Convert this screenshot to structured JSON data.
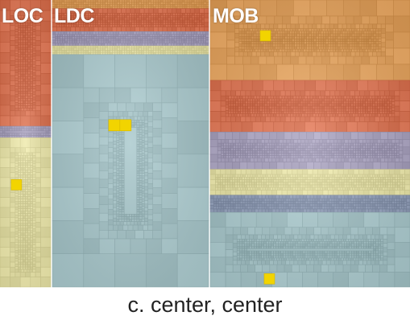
{
  "labels": {
    "loc": "LOC",
    "ldc": "LDC",
    "mob": "MOB"
  },
  "caption": "c. center, center",
  "colors": {
    "orange": "#e8a45c",
    "red": "#e0724f",
    "lavender": "#a9a2c0",
    "cream": "#ece7a8",
    "teal": "#a8c8cc",
    "slate": "#8f9db8",
    "highlight": "#f2d400"
  },
  "panels": [
    {
      "id": "loc",
      "bands": [
        {
          "color": "red",
          "share": 0.44
        },
        {
          "color": "lavender",
          "share": 0.04
        },
        {
          "color": "cream",
          "share": 0.52
        }
      ],
      "highlight": {
        "band": 2
      }
    },
    {
      "id": "ldc",
      "bands": [
        {
          "color": "orange",
          "share": 0.03
        },
        {
          "color": "red",
          "share": 0.08
        },
        {
          "color": "lavender",
          "share": 0.05
        },
        {
          "color": "cream",
          "share": 0.03
        },
        {
          "color": "teal",
          "share": 0.81
        }
      ],
      "highlight": {
        "band": 4
      }
    },
    {
      "id": "mob",
      "bands": [
        {
          "color": "orange",
          "share": 0.28
        },
        {
          "color": "red",
          "share": 0.18
        },
        {
          "color": "lavender",
          "share": 0.13
        },
        {
          "color": "cream",
          "share": 0.09
        },
        {
          "color": "slate",
          "share": 0.06
        },
        {
          "color": "teal",
          "share": 0.26
        }
      ],
      "highlight": {
        "band": 0
      }
    }
  ]
}
